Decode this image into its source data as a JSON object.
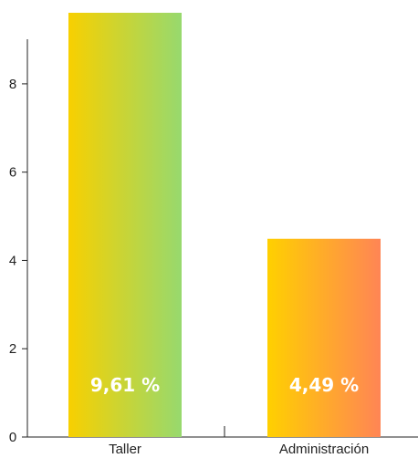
{
  "chart_data": {
    "type": "bar",
    "categories": [
      "Taller",
      "Administración"
    ],
    "values": [
      9.61,
      4.49
    ],
    "data_labels": [
      "9,61 %",
      "4,49 %"
    ],
    "ylim": [
      0,
      9.61
    ],
    "yticks": [
      "0",
      "2",
      "4",
      "6",
      "8"
    ],
    "grid": false,
    "bar_gradients": [
      {
        "from": "#f8d000",
        "to": "#97d96e"
      },
      {
        "from": "#ffd000",
        "to": "#ff8555"
      }
    ]
  }
}
